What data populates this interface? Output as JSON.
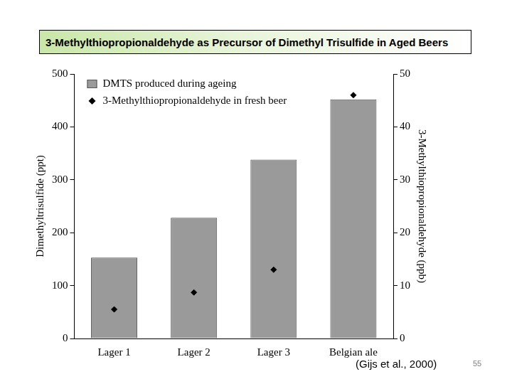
{
  "chart_data": {
    "type": "bar",
    "title": "3-Methylthiopropionaldehyde as Precursor of Dimethyl Trisulfide in Aged Beers",
    "categories": [
      "Lager 1",
      "Lager 2",
      "Lager 3",
      "Belgian ale"
    ],
    "series": [
      {
        "name": "DMTS produced during ageing",
        "type": "bar",
        "color": "#9a9a9a",
        "values": [
          153,
          228,
          338,
          452
        ]
      },
      {
        "name": "3-Methylthiopropionaldehyde in fresh beer",
        "type": "line",
        "color": "#000000",
        "marker": "diamond",
        "line_style": "none",
        "axis": "y2",
        "values": [
          5.5,
          8.7,
          13,
          46
        ]
      }
    ],
    "ylabel": "Dimethyltrisulfide (ppt)",
    "y2label": "3-Methylthiopropionaldehyde (ppb)",
    "ylim": [
      0,
      500
    ],
    "yticks": [
      0,
      100,
      200,
      300,
      400,
      500
    ],
    "y2lim": [
      0,
      50
    ],
    "y2ticks": [
      0,
      10,
      20,
      30,
      40,
      50
    ],
    "grid": false,
    "legend": "upper left",
    "annotations": [
      "(Gijs et al., 2000)",
      "55"
    ]
  }
}
